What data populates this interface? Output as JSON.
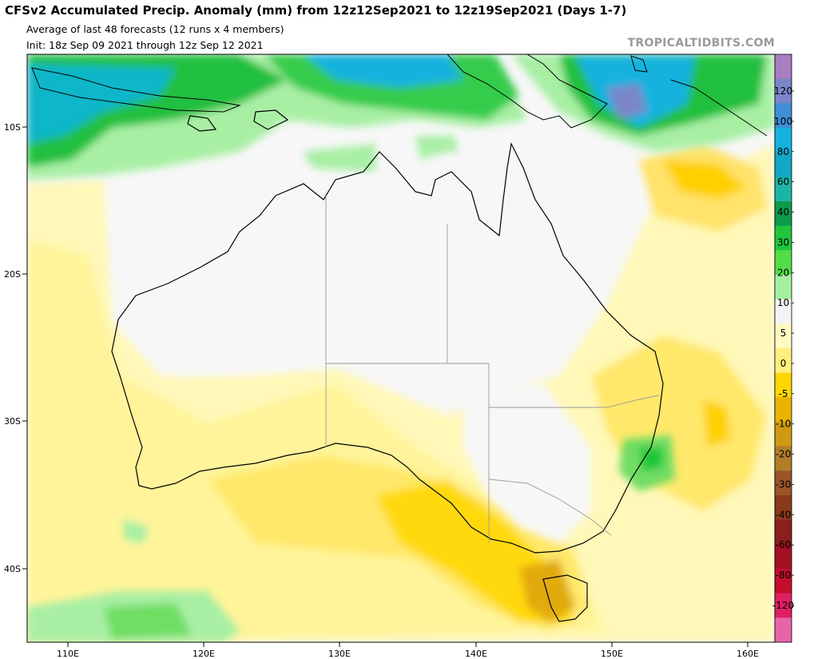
{
  "header": {
    "title": "CFSv2 Accumulated Precip. Anomaly (mm) from 12z12Sep2021 to 12z19Sep2021 (Days 1-7)",
    "subtitle": "Average of last 48 forecasts (12 runs x 4 members)",
    "init": "Init: 18z Sep 09 2021 through 12z Sep 12 2021",
    "brand": "TROPICALTIDBITS.COM"
  },
  "map": {
    "region": "Australia",
    "lon_labels": [
      "110E",
      "120E",
      "130E",
      "140E",
      "150E",
      "160E"
    ],
    "lat_labels": [
      "10S",
      "20S",
      "30S",
      "40S"
    ]
  },
  "colorbar": {
    "labels": [
      "120",
      "100",
      "80",
      "60",
      "40",
      "30",
      "20",
      "10",
      "5",
      "0",
      "-5",
      "-10",
      "-20",
      "-30",
      "-40",
      "-60",
      "-80",
      "-120"
    ],
    "colors": [
      "#a77ebf",
      "#7a86c8",
      "#3f8ed6",
      "#16b2de",
      "#12a7c4",
      "#1bb5a8",
      "#0d9a4c",
      "#1fc63b",
      "#52dd48",
      "#a6f0a2",
      "#f3f3f3",
      "#fffbc0",
      "#fff07c",
      "#ffd600",
      "#e9b400",
      "#cf9a11",
      "#b07e28",
      "#9b5428",
      "#8a3a1b",
      "#8a1f1b",
      "#a40f22",
      "#c20e2c",
      "#df1f62",
      "#e665a8"
    ]
  }
}
